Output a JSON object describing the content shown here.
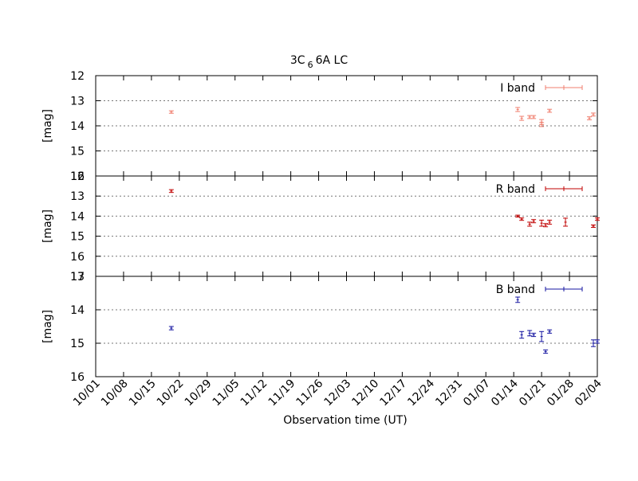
{
  "chart_data": {
    "type": "scatter",
    "title": "3C 66A LC",
    "title_main": "3C",
    "title_sub": "6",
    "title_rest": "6A LC",
    "xlabel": "Observation time (UT)",
    "x_ticks": [
      "10/01",
      "10/08",
      "10/15",
      "10/22",
      "10/29",
      "11/05",
      "11/12",
      "11/19",
      "11/26",
      "12/03",
      "12/10",
      "12/17",
      "12/24",
      "12/31",
      "01/07",
      "01/14",
      "01/21",
      "01/28",
      "02/04"
    ],
    "grid": "horizontal dotted",
    "legend_position": "top-right",
    "panels": [
      {
        "name": "I band",
        "color": "#f07f6f",
        "ylabel": "[mag]",
        "ylim": [
          12,
          16
        ],
        "y_ticks": [
          12,
          13,
          14,
          15,
          16
        ],
        "points": [
          {
            "x": "10/20",
            "y": 13.45,
            "err": 0.05
          },
          {
            "x": "01/15",
            "y": 13.35,
            "err": 0.08
          },
          {
            "x": "01/16",
            "y": 13.7,
            "err": 0.08
          },
          {
            "x": "01/18",
            "y": 13.65,
            "err": 0.06
          },
          {
            "x": "01/19",
            "y": 13.65,
            "err": 0.06
          },
          {
            "x": "01/21",
            "y": 13.85,
            "err": 0.1
          },
          {
            "x": "01/21",
            "y": 13.95,
            "err": 0.08
          },
          {
            "x": "01/23",
            "y": 13.4,
            "err": 0.06
          },
          {
            "x": "02/02",
            "y": 13.7,
            "err": 0.06
          },
          {
            "x": "02/03",
            "y": 13.55,
            "err": 0.06
          }
        ]
      },
      {
        "name": "R band",
        "color": "#c00000",
        "ylabel": "[mag]",
        "ylim": [
          12,
          17
        ],
        "y_ticks": [
          12,
          13,
          14,
          15,
          16,
          17
        ],
        "points": [
          {
            "x": "10/20",
            "y": 12.75,
            "err": 0.07
          },
          {
            "x": "01/15",
            "y": 14.0,
            "err": 0.05
          },
          {
            "x": "01/16",
            "y": 14.15,
            "err": 0.06
          },
          {
            "x": "01/18",
            "y": 14.4,
            "err": 0.1
          },
          {
            "x": "01/19",
            "y": 14.25,
            "err": 0.08
          },
          {
            "x": "01/21",
            "y": 14.35,
            "err": 0.15
          },
          {
            "x": "01/22",
            "y": 14.45,
            "err": 0.08
          },
          {
            "x": "01/23",
            "y": 14.3,
            "err": 0.1
          },
          {
            "x": "01/27",
            "y": 14.3,
            "err": 0.2
          },
          {
            "x": "02/03",
            "y": 14.5,
            "err": 0.06
          },
          {
            "x": "02/04",
            "y": 14.15,
            "err": 0.06
          }
        ]
      },
      {
        "name": "B band",
        "color": "#1414a0",
        "ylabel": "[mag]",
        "ylim": [
          13,
          16
        ],
        "y_ticks": [
          13,
          14,
          15,
          16
        ],
        "points": [
          {
            "x": "10/20",
            "y": 14.55,
            "err": 0.05
          },
          {
            "x": "01/15",
            "y": 13.7,
            "err": 0.08
          },
          {
            "x": "01/16",
            "y": 14.75,
            "err": 0.1
          },
          {
            "x": "01/18",
            "y": 14.7,
            "err": 0.08
          },
          {
            "x": "01/19",
            "y": 14.75,
            "err": 0.05
          },
          {
            "x": "01/21",
            "y": 14.8,
            "err": 0.15
          },
          {
            "x": "01/22",
            "y": 15.25,
            "err": 0.05
          },
          {
            "x": "01/23",
            "y": 14.65,
            "err": 0.05
          },
          {
            "x": "02/03",
            "y": 15.0,
            "err": 0.1
          },
          {
            "x": "02/04",
            "y": 14.95,
            "err": 0.05
          }
        ]
      }
    ]
  }
}
